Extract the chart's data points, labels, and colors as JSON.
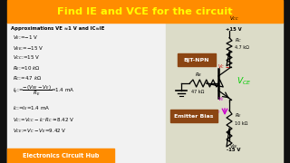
{
  "title": "Find IE and VCE for the circuit",
  "title_bg": "#FF8C00",
  "title_color": "#FFFF00",
  "subtitle": "Approximations VE ≈1 V and IC≈IE",
  "bottom_label": "Electronics Circuit Hub",
  "bottom_label_bg": "#FF8C00",
  "bjt_label": "BJT-NPN",
  "bjt_label_bg": "#8B4513",
  "emitter_label": "Emitter Bias",
  "emitter_label_bg": "#8B4513",
  "vcc_text": "+15 V",
  "vee_text": "-15 V",
  "rc_text": "4.7 kΩ",
  "re_text": "10 kΩ",
  "rb_text": "47 kΩ",
  "vce_color": "#00CC00",
  "ve_color": "#CC00CC",
  "ie_color": "#CC00CC",
  "vc_color": "#CC0000",
  "left_bg": "#F0F0F0",
  "right_bg": "#D8D8C0",
  "border_color": "#111111",
  "fig_bg": "#111111"
}
